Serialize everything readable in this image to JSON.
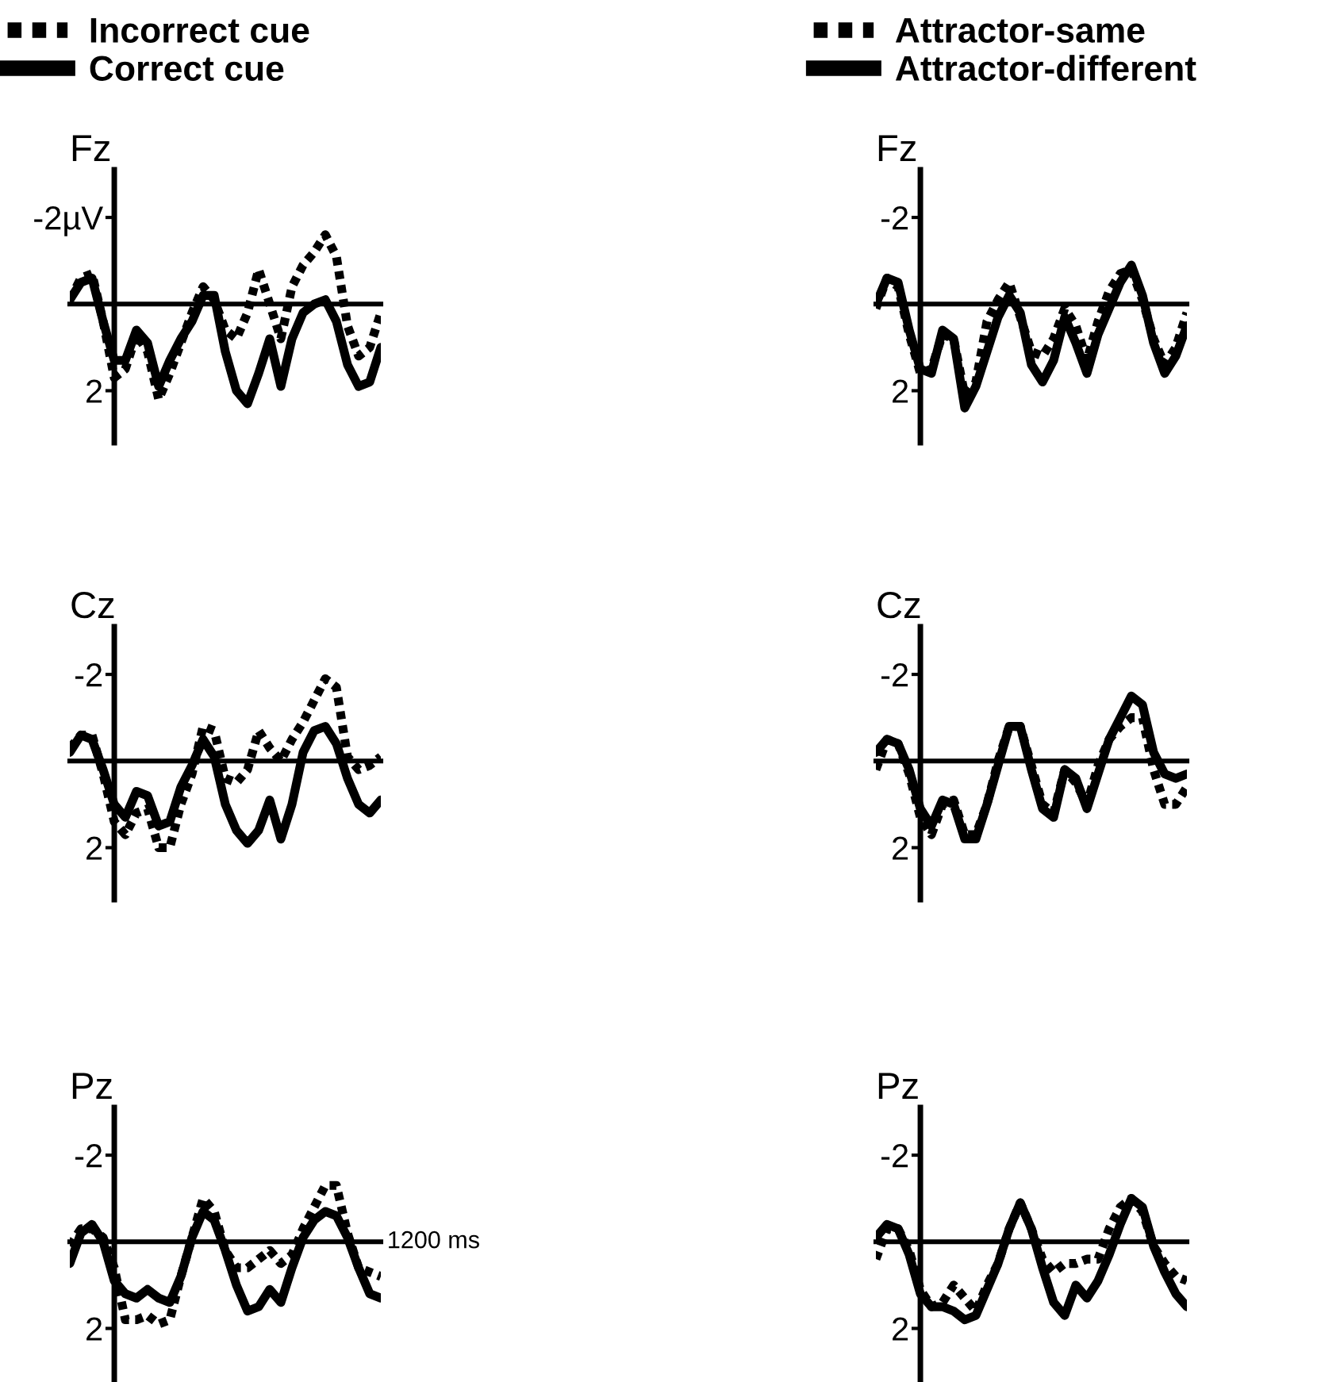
{
  "chart_data": [
    {
      "type": "line",
      "title": "Fz",
      "categories": [
        null,
        null,
        null,
        null,
        null,
        null,
        null,
        null,
        null,
        null,
        null,
        null,
        null,
        null,
        null,
        null,
        null,
        null,
        null,
        null,
        null,
        null,
        null,
        null,
        null,
        null,
        null,
        null,
        null
      ],
      "ylim": [
        3.2,
        -3.1
      ],
      "yticks": [
        {
          "value": -2,
          "label": "-2µV"
        },
        2
      ],
      "tick_labels": "y",
      "legend": "top",
      "series": [
        {
          "name": "Incorrect cue",
          "color": "#000000",
          "line_style": "dotted",
          "values": [
            -0.1,
            -0.6,
            -0.7,
            0.4,
            1.7,
            1.5,
            0.7,
            1.1,
            2.2,
            1.6,
            0.9,
            0.2,
            -0.4,
            -0.1,
            0.6,
            0.8,
            0.2,
            -0.8,
            0.0,
            0.8,
            -0.4,
            -0.9,
            -1.2,
            -1.6,
            -1.1,
            0.5,
            1.2,
            1.0,
            0.2
          ]
        },
        {
          "name": "Correct cue",
          "color": "#000000",
          "line_style": "solid",
          "values": [
            -0.1,
            -0.5,
            -0.6,
            0.4,
            1.3,
            1.3,
            0.6,
            0.9,
            1.9,
            1.3,
            0.8,
            0.4,
            -0.2,
            -0.2,
            1.1,
            2.0,
            2.3,
            1.6,
            0.8,
            1.9,
            0.8,
            0.2,
            0.0,
            -0.1,
            0.4,
            1.4,
            1.9,
            1.8,
            1.0
          ]
        }
      ]
    },
    {
      "type": "line",
      "title": "Fz",
      "categories": [
        null,
        null,
        null,
        null,
        null,
        null,
        null,
        null,
        null,
        null,
        null,
        null,
        null,
        null,
        null,
        null,
        null,
        null,
        null,
        null,
        null,
        null,
        null,
        null,
        null,
        null,
        null,
        null,
        null
      ],
      "ylim": [
        3.2,
        -3.1
      ],
      "yticks": [
        -2,
        2
      ],
      "tick_labels": "y",
      "legend": "top",
      "series": [
        {
          "name": "Attractor-same",
          "color": "#000000",
          "line_style": "dotted",
          "values": [
            0.1,
            -0.6,
            -0.4,
            0.7,
            1.6,
            1.5,
            0.7,
            0.8,
            2.1,
            1.8,
            0.4,
            -0.1,
            -0.5,
            0.3,
            1.1,
            1.2,
            0.8,
            0.1,
            0.5,
            1.3,
            0.4,
            -0.3,
            -0.7,
            -0.8,
            -0.1,
            0.8,
            1.4,
            1.0,
            0.2
          ]
        },
        {
          "name": "Attractor-different",
          "color": "#000000",
          "line_style": "solid",
          "values": [
            0.0,
            -0.6,
            -0.5,
            0.6,
            1.5,
            1.6,
            0.6,
            0.8,
            2.4,
            1.9,
            1.1,
            0.3,
            -0.2,
            0.2,
            1.4,
            1.8,
            1.3,
            0.3,
            0.9,
            1.6,
            0.7,
            0.1,
            -0.5,
            -0.9,
            -0.2,
            0.9,
            1.6,
            1.2,
            0.5
          ]
        }
      ]
    },
    {
      "type": "line",
      "title": "Cz",
      "categories": [
        null,
        null,
        null,
        null,
        null,
        null,
        null,
        null,
        null,
        null,
        null,
        null,
        null,
        null,
        null,
        null,
        null,
        null,
        null,
        null,
        null,
        null,
        null,
        null,
        null,
        null,
        null,
        null,
        null
      ],
      "ylim": [
        3.2,
        -3.1
      ],
      "yticks": [
        -2,
        2
      ],
      "tick_labels": "y",
      "series": [
        {
          "color": "#000000",
          "line_style": "dotted",
          "values": [
            -0.3,
            -0.6,
            -0.6,
            0.3,
            1.4,
            1.7,
            1.2,
            1.1,
            2.0,
            2.0,
            1.0,
            0.3,
            -0.8,
            -0.7,
            0.4,
            0.5,
            0.2,
            -0.7,
            -0.3,
            0.0,
            -0.5,
            -0.9,
            -1.4,
            -1.9,
            -1.7,
            -0.1,
            0.2,
            0.1,
            -0.1
          ]
        },
        {
          "color": "#000000",
          "line_style": "solid",
          "values": [
            -0.2,
            -0.6,
            -0.5,
            0.2,
            1.0,
            1.3,
            0.7,
            0.8,
            1.5,
            1.4,
            0.6,
            0.1,
            -0.5,
            -0.1,
            1.0,
            1.6,
            1.9,
            1.6,
            0.9,
            1.8,
            1.0,
            -0.2,
            -0.7,
            -0.8,
            -0.4,
            0.4,
            1.0,
            1.2,
            0.9
          ]
        }
      ]
    },
    {
      "type": "line",
      "title": "Cz",
      "categories": [
        null,
        null,
        null,
        null,
        null,
        null,
        null,
        null,
        null,
        null,
        null,
        null,
        null,
        null,
        null,
        null,
        null,
        null,
        null,
        null,
        null,
        null,
        null,
        null,
        null,
        null,
        null,
        null,
        null
      ],
      "ylim": [
        3.2,
        -3.1
      ],
      "yticks": [
        -2,
        2
      ],
      "tick_labels": "y",
      "series": [
        {
          "color": "#000000",
          "line_style": "dotted",
          "values": [
            0.2,
            -0.5,
            -0.4,
            0.3,
            1.3,
            1.7,
            1.0,
            0.9,
            1.7,
            1.7,
            1.0,
            0.0,
            -0.8,
            -0.8,
            0.1,
            1.0,
            1.2,
            0.2,
            0.5,
            1.0,
            0.1,
            -0.5,
            -0.8,
            -1.0,
            -1.0,
            0.2,
            1.0,
            1.0,
            0.6
          ]
        },
        {
          "color": "#000000",
          "line_style": "solid",
          "values": [
            -0.2,
            -0.5,
            -0.4,
            0.2,
            1.1,
            1.5,
            0.9,
            1.0,
            1.8,
            1.8,
            1.0,
            0.1,
            -0.8,
            -0.8,
            0.2,
            1.1,
            1.3,
            0.2,
            0.4,
            1.1,
            0.3,
            -0.5,
            -1.0,
            -1.5,
            -1.3,
            -0.2,
            0.3,
            0.4,
            0.3
          ]
        }
      ]
    },
    {
      "type": "line",
      "title": "Pz",
      "categories": [
        null,
        null,
        null,
        null,
        null,
        null,
        null,
        null,
        null,
        null,
        null,
        null,
        null,
        null,
        null,
        null,
        null,
        null,
        null,
        null,
        null,
        null,
        null,
        null,
        null,
        null,
        null,
        null,
        null
      ],
      "ylim": [
        3.2,
        -3.1
      ],
      "yticks": [
        -2,
        2
      ],
      "tick_labels": "y",
      "annotations": [
        "1200 ms"
      ],
      "series": [
        {
          "color": "#000000",
          "line_style": "dotted",
          "values": [
            0.1,
            -0.3,
            -0.3,
            -0.1,
            0.6,
            1.8,
            1.8,
            1.7,
            1.9,
            1.8,
            0.8,
            -0.1,
            -1.0,
            -0.7,
            0.2,
            0.6,
            0.6,
            0.4,
            0.2,
            0.5,
            0.3,
            -0.3,
            -0.8,
            -1.3,
            -1.3,
            -0.2,
            0.6,
            0.7,
            0.8
          ]
        },
        {
          "color": "#000000",
          "line_style": "solid",
          "values": [
            0.5,
            -0.2,
            -0.4,
            0.0,
            0.9,
            1.2,
            1.3,
            1.1,
            1.3,
            1.4,
            0.8,
            -0.1,
            -0.7,
            -0.5,
            0.2,
            1.0,
            1.6,
            1.5,
            1.1,
            1.4,
            0.6,
            -0.1,
            -0.5,
            -0.7,
            -0.6,
            -0.1,
            0.6,
            1.2,
            1.3
          ]
        }
      ]
    },
    {
      "type": "line",
      "title": "Pz",
      "categories": [
        null,
        null,
        null,
        null,
        null,
        null,
        null,
        null,
        null,
        null,
        null,
        null,
        null,
        null,
        null,
        null,
        null,
        null,
        null,
        null,
        null,
        null,
        null,
        null,
        null,
        null,
        null,
        null,
        null
      ],
      "ylim": [
        3.2,
        -3.1
      ],
      "yticks": [
        -2,
        2
      ],
      "tick_labels": "y",
      "series": [
        {
          "color": "#000000",
          "line_style": "dotted",
          "values": [
            0.4,
            -0.3,
            -0.3,
            0.2,
            1.1,
            1.5,
            1.4,
            1.0,
            1.3,
            1.6,
            1.0,
            0.5,
            -0.3,
            -0.9,
            -0.3,
            0.4,
            0.7,
            0.5,
            0.5,
            0.4,
            0.4,
            -0.3,
            -0.8,
            -1.0,
            -0.7,
            0.1,
            0.5,
            0.8,
            0.9
          ]
        },
        {
          "color": "#000000",
          "line_style": "solid",
          "values": [
            -0.1,
            -0.4,
            -0.3,
            0.3,
            1.2,
            1.5,
            1.5,
            1.6,
            1.8,
            1.7,
            1.1,
            0.5,
            -0.3,
            -0.9,
            -0.3,
            0.6,
            1.4,
            1.7,
            1.0,
            1.3,
            0.9,
            0.3,
            -0.4,
            -1.0,
            -0.8,
            0.1,
            0.7,
            1.2,
            1.5
          ]
        }
      ]
    }
  ]
}
